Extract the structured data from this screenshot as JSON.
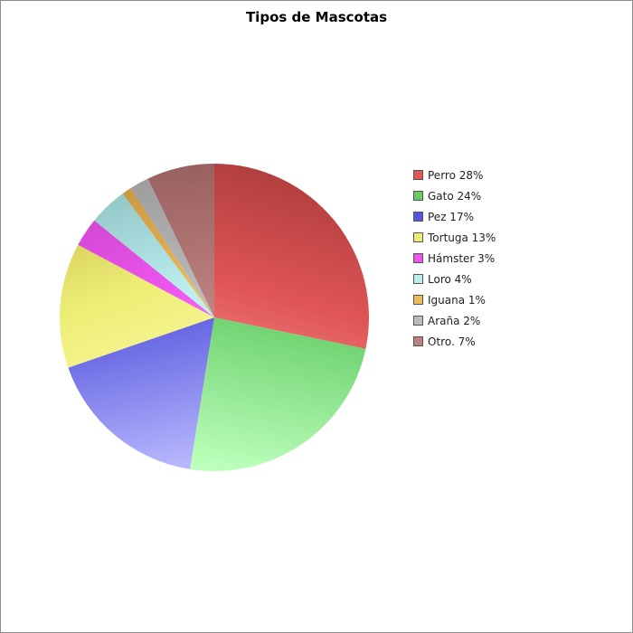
{
  "chart_data": {
    "type": "pie",
    "title": "Tipos de Mascotas",
    "legend_position": "right",
    "slices": [
      {
        "label": "Perro 28%",
        "value": 28,
        "color": "#e05555",
        "dark": "#a83a3a",
        "light": "#ffaaaa"
      },
      {
        "label": "Gato 24%",
        "value": 24,
        "color": "#66cc66",
        "dark": "#4aab4a",
        "light": "#bbffbb"
      },
      {
        "label": "Pez 17%",
        "value": 17,
        "color": "#5555dd",
        "dark": "#3a3ab0",
        "light": "#bbbbff"
      },
      {
        "label": "Tortuga 13%",
        "value": 13,
        "color": "#eeee77",
        "dark": "#c4b848",
        "light": "#ffffbb"
      },
      {
        "label": "Hámster 3%",
        "value": 3,
        "color": "#ee55ee",
        "dark": "#c040c0",
        "light": "#ffaaff"
      },
      {
        "label": "Loro 4%",
        "value": 4,
        "color": "#bbeeee",
        "dark": "#88bbbb",
        "light": "#eeffff"
      },
      {
        "label": "Iguana 1%",
        "value": 1,
        "color": "#eebb55",
        "dark": "#c09040",
        "light": "#ffdd99"
      },
      {
        "label": "Araña 2%",
        "value": 2,
        "color": "#bbbbbb",
        "dark": "#999999",
        "light": "#dddddd"
      },
      {
        "label": "Otro. 7%",
        "value": 7,
        "color": "#bb8080",
        "dark": "#996060",
        "light": "#ddbbbb"
      }
    ]
  }
}
